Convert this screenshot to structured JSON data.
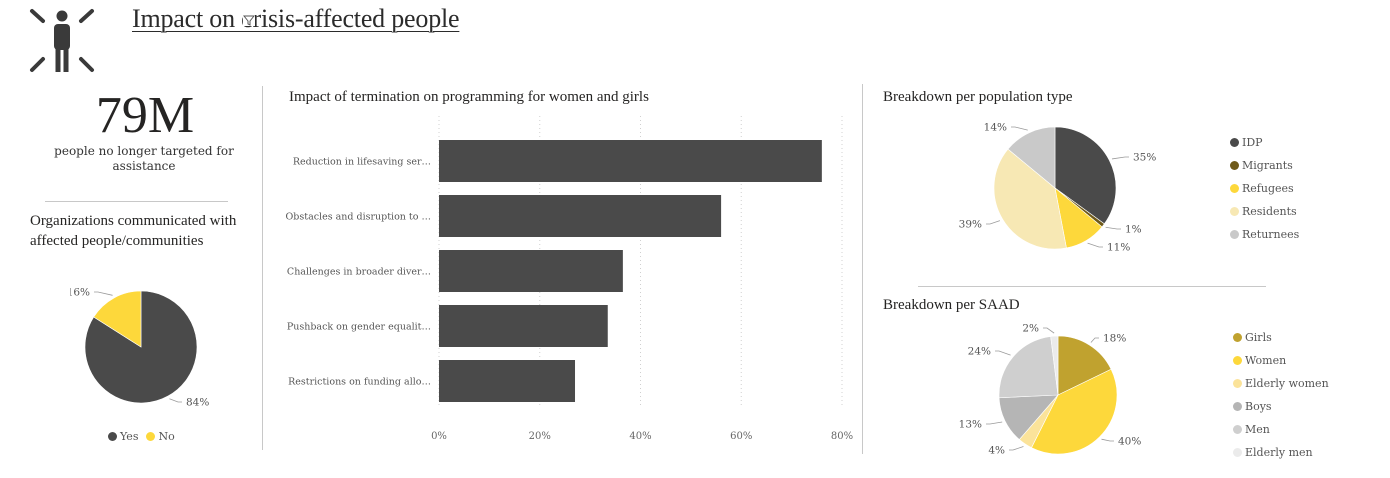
{
  "page": {
    "title": "Impact on crisis-affected people",
    "icon": "person-impact-icon"
  },
  "kpi": {
    "value": "79M",
    "label": "people no longer targeted for assistance"
  },
  "colors": {
    "dark": "#4a4a4a",
    "yellow": "#fdd83b",
    "olive": "#6f5a1a",
    "pale_yellow": "#f7e8b4",
    "light_gray": "#c9c9c9",
    "gold": "#c0a22f",
    "pale_gold": "#fbe39a",
    "mid_gray": "#b5b5b5",
    "silver": "#cfcfcf",
    "very_light_gray": "#ebebeb"
  },
  "chart_data": [
    {
      "id": "org-pie",
      "type": "pie",
      "title": "Organizations communicated with affected people/communities",
      "slices": [
        {
          "label": "Yes",
          "value": 84,
          "display": "84%",
          "color": "#4a4a4a"
        },
        {
          "label": "No",
          "value": 16,
          "display": "16%",
          "color": "#fdd83b"
        }
      ],
      "legend": {
        "placement": "bottom",
        "entries": [
          "Yes",
          "No"
        ]
      }
    },
    {
      "id": "termination-bar",
      "type": "bar",
      "orientation": "horizontal",
      "title": "Impact of termination on programming for women and girls",
      "categories": [
        "Reduction in lifesaving ser…",
        "Obstacles and disruption to …",
        "Challenges in broader diver…",
        "Pushback on gender equalit…",
        "Restrictions on funding allo…"
      ],
      "values": [
        0.76,
        0.56,
        0.365,
        0.335,
        0.27
      ],
      "xlim": [
        0,
        0.8
      ],
      "x_ticks": [
        "0%",
        "20%",
        "40%",
        "60%",
        "80%"
      ],
      "grid": "vertical-dotted",
      "color": "#4a4a4a"
    },
    {
      "id": "population-pie",
      "type": "pie",
      "title": "Breakdown per population type",
      "slices": [
        {
          "label": "IDP",
          "value": 35,
          "display": "35%",
          "color": "#4a4a4a"
        },
        {
          "label": "Migrants",
          "value": 1,
          "display": "1%",
          "color": "#6f5a1a"
        },
        {
          "label": "Refugees",
          "value": 11,
          "display": "11%",
          "color": "#fdd83b"
        },
        {
          "label": "Residents",
          "value": 39,
          "display": "39%",
          "color": "#f7e8b4"
        },
        {
          "label": "Returnees",
          "value": 14,
          "display": "14%",
          "color": "#c9c9c9"
        }
      ],
      "legend": {
        "placement": "right"
      }
    },
    {
      "id": "saad-pie",
      "type": "pie",
      "title": "Breakdown per SAAD",
      "slices": [
        {
          "label": "Girls",
          "value": 18,
          "display": "18%",
          "color": "#c0a22f"
        },
        {
          "label": "Women",
          "value": 40,
          "display": "40%",
          "color": "#fdd83b"
        },
        {
          "label": "Elderly women",
          "value": 4,
          "display": "4%",
          "color": "#fbe39a"
        },
        {
          "label": "Boys",
          "value": 13,
          "display": "13%",
          "color": "#b5b5b5"
        },
        {
          "label": "Men",
          "value": 24,
          "display": "24%",
          "color": "#cfcfcf"
        },
        {
          "label": "Elderly men",
          "value": 2,
          "display": "2%",
          "color": "#ebebeb"
        }
      ],
      "legend": {
        "placement": "right"
      }
    }
  ]
}
